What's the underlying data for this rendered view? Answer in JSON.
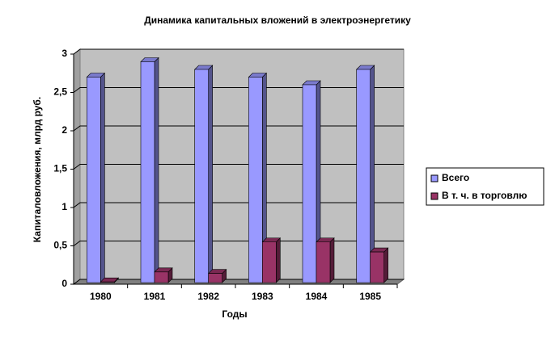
{
  "chart_data": {
    "type": "bar3d",
    "title": "Динамика капитальных вложений в электроэнергетику",
    "x_label": "Годы",
    "y_label": "Капиталовложения, млрд руб.",
    "categories": [
      "1980",
      "1981",
      "1982",
      "1983",
      "1984",
      "1985"
    ],
    "series": [
      {
        "name": "Всего",
        "color": "#9999ff",
        "values": [
          2.7,
          2.9,
          2.8,
          2.7,
          2.6,
          2.8
        ]
      },
      {
        "name": "В т. ч. в торговлю",
        "color": "#993366",
        "values": [
          0.03,
          0.16,
          0.14,
          0.55,
          0.55,
          0.42
        ]
      }
    ],
    "ylim": [
      0,
      3
    ],
    "yticks": [
      0,
      {
        "value": 0.5,
        "label": "0,5"
      },
      1,
      {
        "value": 1.5,
        "label": "1,5"
      },
      2,
      {
        "value": 2.5,
        "label": "2,5"
      },
      3
    ],
    "grid": true,
    "legend": "right"
  }
}
